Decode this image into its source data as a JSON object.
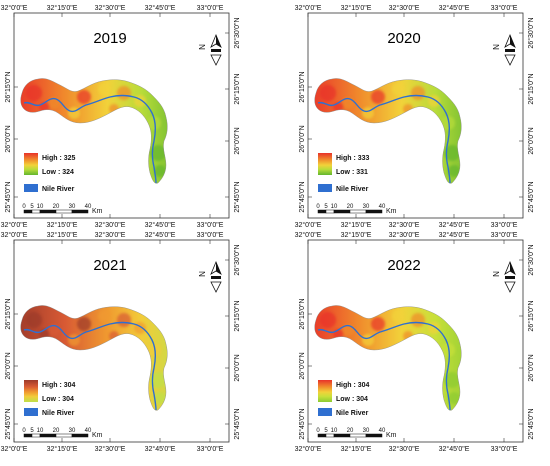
{
  "panels": [
    {
      "year": "2019",
      "legend": {
        "high": "High : 325",
        "low": "Low : 324"
      },
      "ramp": [
        "#e8322a",
        "#f08a2c",
        "#f2d23a",
        "#b8dc3a",
        "#63b52e"
      ]
    },
    {
      "year": "2020",
      "legend": {
        "high": "High : 333",
        "low": "Low : 331"
      },
      "ramp": [
        "#e8322a",
        "#f08a2c",
        "#f2d23a",
        "#b8dc3a",
        "#63b52e"
      ]
    },
    {
      "year": "2021",
      "legend": {
        "high": "High : 304",
        "low": "Low : 304"
      },
      "ramp": [
        "#9c3a2a",
        "#d85a34",
        "#f09a30",
        "#f2cc3a",
        "#bfe04a"
      ]
    },
    {
      "year": "2022",
      "legend": {
        "high": "High : 304",
        "low": "Low : 304"
      },
      "ramp": [
        "#e8322a",
        "#f08a2c",
        "#f2d23a",
        "#c8e03a",
        "#8ccb32"
      ]
    }
  ],
  "shared": {
    "top_lon": [
      "32°0'0\"E",
      "32°15'0\"E",
      "32°30'0\"E",
      "32°45'0\"E",
      "33°0'0\"E"
    ],
    "bottom_lon": [
      "32°0'0\"E",
      "32°15'0\"E",
      "32°30'0\"E",
      "32°45'0\"E",
      "33°0'0\"E"
    ],
    "left_lat": [
      "26°15'0\"N",
      "26°0'0\"N",
      "25°45'0\"N"
    ],
    "right_lat": [
      "26°30'0\"N",
      "26°15'0\"N",
      "26°0'0\"N",
      "25°45'0\"N"
    ],
    "river_label": "Nile River",
    "scale_ticks": [
      "0",
      "5",
      "10",
      "20",
      "30",
      "40"
    ],
    "scale_unit": "Km",
    "north_letter": "N",
    "river_color": "#2f6fd0"
  }
}
